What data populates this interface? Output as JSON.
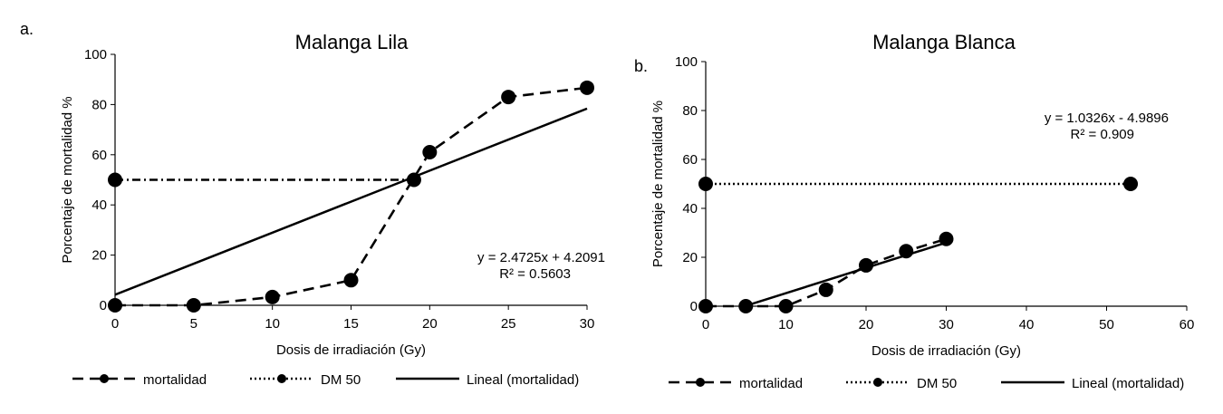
{
  "chart_data": [
    {
      "panel_label": "a.",
      "type": "line",
      "title": "Malanga Lila",
      "xlabel": "Dosis de irradiación (Gy)",
      "ylabel": "Porcentaje de mortalidad %",
      "xlim": [
        0,
        30
      ],
      "ylim": [
        0,
        100
      ],
      "xticks": [
        0,
        5,
        10,
        15,
        20,
        25,
        30
      ],
      "yticks": [
        0,
        20,
        40,
        60,
        80,
        100
      ],
      "grid": false,
      "legend_position": "bottom",
      "series": [
        {
          "name": "mortalidad",
          "style": "dashed",
          "marker": "circle",
          "x": [
            0,
            5,
            10,
            15,
            20,
            25,
            30
          ],
          "y": [
            0,
            0,
            3.3,
            10,
            61,
            83,
            86.7
          ]
        },
        {
          "name": "DM 50",
          "style": "dash-dot",
          "marker": "circle",
          "x": [
            0,
            19
          ],
          "y": [
            50,
            50
          ]
        },
        {
          "name": "Lineal (mortalidad)",
          "style": "solid",
          "marker": "none",
          "slope": 2.4725,
          "intercept": 4.2091,
          "x_range": [
            0,
            30
          ]
        }
      ],
      "equation": "y = 2.4725x + 4.2091",
      "r2": "R² = 0.5603"
    },
    {
      "panel_label": "b.",
      "type": "line",
      "title": "Malanga Blanca",
      "xlabel": "Dosis de irradiación (Gy)",
      "ylabel": "Porcentaje de mortalidad %",
      "xlim": [
        0,
        60
      ],
      "ylim": [
        0,
        100
      ],
      "xticks": [
        0,
        10,
        20,
        30,
        40,
        50,
        60
      ],
      "yticks": [
        0,
        20,
        40,
        60,
        80,
        100
      ],
      "grid": false,
      "legend_position": "bottom",
      "series": [
        {
          "name": "mortalidad",
          "style": "dashed",
          "marker": "circle",
          "x": [
            0,
            5,
            10,
            15,
            20,
            25,
            30
          ],
          "y": [
            0,
            0,
            0,
            6.7,
            16.7,
            22.5,
            27.5
          ]
        },
        {
          "name": "DM 50",
          "style": "dotted",
          "marker": "circle",
          "x": [
            0,
            53
          ],
          "y": [
            50,
            50
          ]
        },
        {
          "name": "Lineal (mortalidad)",
          "style": "solid",
          "marker": "none",
          "slope": 1.0326,
          "intercept": -4.9896,
          "x_range": [
            5,
            30
          ]
        }
      ],
      "equation": "y = 1.0326x - 4.9896",
      "r2": "R² = 0.909"
    }
  ]
}
